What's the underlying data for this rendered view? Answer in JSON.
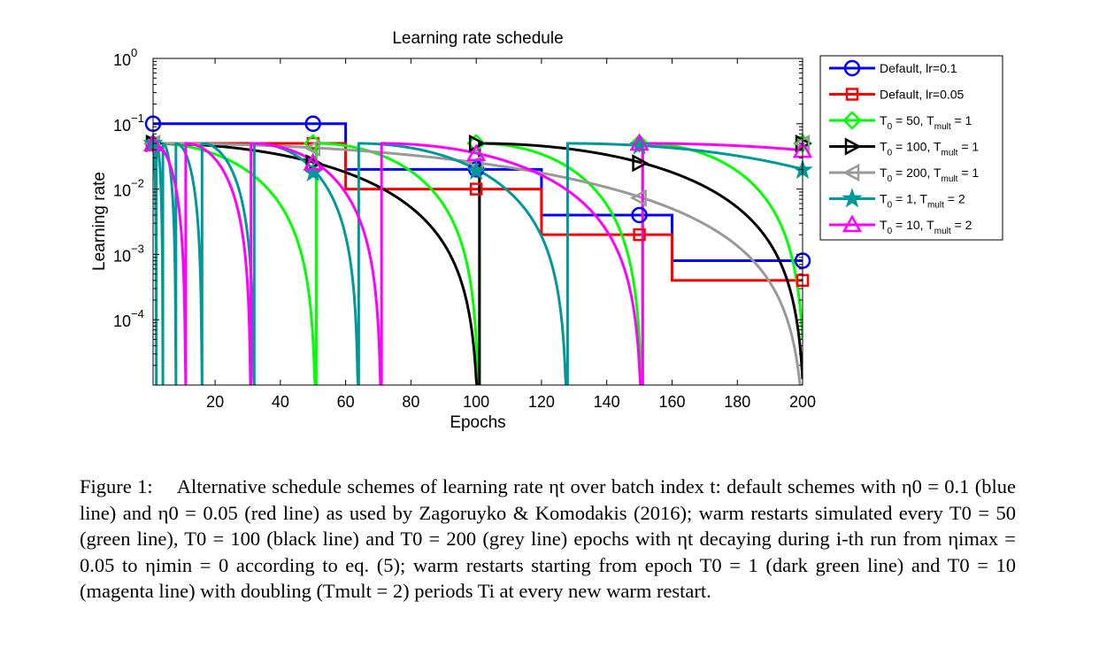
{
  "chart_data": {
    "type": "line",
    "title": "Learning rate schedule",
    "xlabel": "Epochs",
    "ylabel": "Learning rate",
    "xlim": [
      1,
      200
    ],
    "ylim": [
      1e-05,
      1
    ],
    "yscale": "log",
    "xticks": [
      20,
      40,
      60,
      80,
      100,
      120,
      140,
      160,
      180,
      200
    ],
    "yticks": [
      {
        "value": 1,
        "base": "10",
        "exp": "0"
      },
      {
        "value": 0.1,
        "base": "10",
        "exp": "−1"
      },
      {
        "value": 0.01,
        "base": "10",
        "exp": "−2"
      },
      {
        "value": 0.001,
        "base": "10",
        "exp": "−3"
      },
      {
        "value": 0.0001,
        "base": "10",
        "exp": "−4"
      }
    ],
    "grid": false,
    "legend_position": "outside-right",
    "series": [
      {
        "name": "Default, lr=0.1",
        "color": "#0000ff",
        "marker": "circle",
        "kind": "step",
        "lr0": 0.1,
        "steps": [
          60,
          120,
          160
        ],
        "factor": 0.2,
        "markers_x": [
          1,
          50,
          100,
          150,
          200
        ]
      },
      {
        "name": "Default, lr=0.05",
        "color": "#ff0000",
        "marker": "square",
        "kind": "step",
        "lr0": 0.05,
        "steps": [
          60,
          120,
          160
        ],
        "factor": 0.2,
        "markers_x": [
          1,
          50,
          100,
          150,
          200
        ]
      },
      {
        "name": "T0 = 50, Tmult = 1",
        "legend": {
          "pre": "T",
          "sub1": "0",
          "mid": " = 50, T",
          "sub2": "mult",
          "post": " = 1"
        },
        "color": "#00ff00",
        "marker": "diamond",
        "kind": "sgdr",
        "T0": 50,
        "Tmult": 1,
        "eta_max": 0.05,
        "eta_min": 0,
        "markers_x": [
          1,
          50,
          100,
          150,
          200
        ]
      },
      {
        "name": "T0 = 100, Tmult = 1",
        "legend": {
          "pre": "T",
          "sub1": "0",
          "mid": " = 100, T",
          "sub2": "mult",
          "post": " = 1"
        },
        "color": "#000000",
        "marker": "triangle-right",
        "kind": "sgdr",
        "T0": 100,
        "Tmult": 1,
        "eta_max": 0.05,
        "eta_min": 0,
        "markers_x": [
          1,
          50,
          100,
          150,
          200
        ]
      },
      {
        "name": "T0 = 200, Tmult = 1",
        "legend": {
          "pre": "T",
          "sub1": "0",
          "mid": " = 200, T",
          "sub2": "mult",
          "post": " = 1"
        },
        "color": "#999999",
        "marker": "triangle-left",
        "kind": "sgdr",
        "T0": 200,
        "Tmult": 1,
        "eta_max": 0.05,
        "eta_min": 0,
        "markers_x": [
          1,
          50,
          100,
          150,
          200
        ]
      },
      {
        "name": "T0 = 1, Tmult = 2",
        "legend": {
          "pre": "T",
          "sub1": "0",
          "mid": " = 1, T",
          "sub2": "mult",
          "post": " = 2"
        },
        "color": "#009999",
        "marker": "pentagram",
        "kind": "sgdr",
        "T0": 1,
        "Tmult": 2,
        "eta_max": 0.05,
        "eta_min": 0,
        "markers_x": [
          1,
          50,
          100,
          150,
          200
        ]
      },
      {
        "name": "T0 = 10, Tmult = 2",
        "legend": {
          "pre": "T",
          "sub1": "0",
          "mid": " = 10, T",
          "sub2": "mult",
          "post": " = 2"
        },
        "color": "#ff00ff",
        "marker": "triangle-up",
        "kind": "sgdr",
        "T0": 10,
        "Tmult": 2,
        "eta_max": 0.05,
        "eta_min": 0,
        "markers_x": [
          1,
          50,
          100,
          150,
          200
        ]
      }
    ]
  },
  "caption": {
    "label": "Figure 1:",
    "text": "Alternative schedule schemes of learning rate ηt over batch index t: default schemes with η0 = 0.1 (blue line) and η0 = 0.05 (red line) as used by Zagoruyko & Komodakis (2016); warm restarts simulated every T0 = 50 (green line), T0 = 100 (black line) and T0 = 200 (grey line) epochs with ηt decaying during i-th run from ηimax = 0.05 to ηimin = 0 according to eq. (5); warm restarts starting from epoch T0 = 1 (dark green line) and T0 = 10 (magenta line) with doubling (Tmult = 2) periods Ti at every new warm restart."
  }
}
